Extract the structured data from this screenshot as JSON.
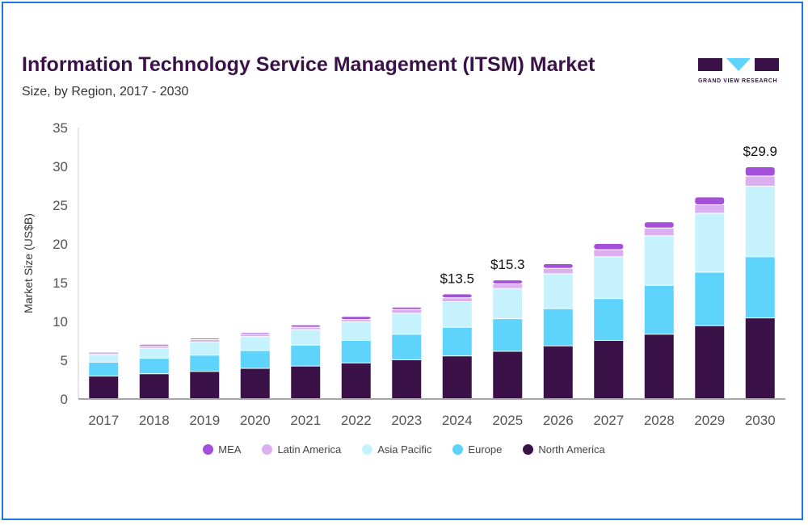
{
  "brand": "GRAND VIEW RESEARCH",
  "chart_data": {
    "type": "bar",
    "stacked": true,
    "title": "Information Technology Service Management (ITSM) Market",
    "subtitle": "Size, by Region, 2017 - 2030",
    "ylabel": "Market Size (US$B)",
    "xlabel": "",
    "ylim": [
      0,
      35
    ],
    "yticks": [
      0,
      5,
      10,
      15,
      20,
      25,
      30,
      35
    ],
    "grid": false,
    "legend_position": "bottom",
    "categories": [
      "2017",
      "2018",
      "2019",
      "2020",
      "2021",
      "2022",
      "2023",
      "2024",
      "2025",
      "2026",
      "2027",
      "2028",
      "2029",
      "2030"
    ],
    "series": [
      {
        "name": "North America",
        "color": "#3a1248",
        "values": [
          2.9,
          3.2,
          3.5,
          3.9,
          4.2,
          4.6,
          5.0,
          5.5,
          6.1,
          6.8,
          7.5,
          8.3,
          9.4,
          10.4
        ]
      },
      {
        "name": "Europe",
        "color": "#5ed3fb",
        "values": [
          1.8,
          2.0,
          2.1,
          2.3,
          2.7,
          2.9,
          3.3,
          3.7,
          4.2,
          4.8,
          5.4,
          6.3,
          6.9,
          7.9
        ]
      },
      {
        "name": "Asia Pacific",
        "color": "#c6f2fd",
        "values": [
          1.0,
          1.3,
          1.7,
          1.8,
          2.0,
          2.4,
          2.7,
          3.3,
          3.9,
          4.5,
          5.4,
          6.4,
          7.6,
          9.1
        ]
      },
      {
        "name": "Latin America",
        "color": "#dcb0f0",
        "values": [
          0.3,
          0.3,
          0.3,
          0.3,
          0.3,
          0.3,
          0.5,
          0.5,
          0.6,
          0.7,
          0.9,
          1.0,
          1.1,
          1.3
        ]
      },
      {
        "name": "MEA",
        "color": "#a550da",
        "values": [
          0.1,
          0.2,
          0.2,
          0.2,
          0.3,
          0.4,
          0.3,
          0.5,
          0.5,
          0.6,
          0.8,
          0.8,
          1.0,
          1.2
        ]
      }
    ],
    "annotations": [
      {
        "category": "2024",
        "text": "$13.5"
      },
      {
        "category": "2025",
        "text": "$15.3"
      },
      {
        "category": "2030",
        "text": "$29.9"
      }
    ],
    "legend_order": [
      "MEA",
      "Latin America",
      "Asia Pacific",
      "Europe",
      "North America"
    ]
  }
}
